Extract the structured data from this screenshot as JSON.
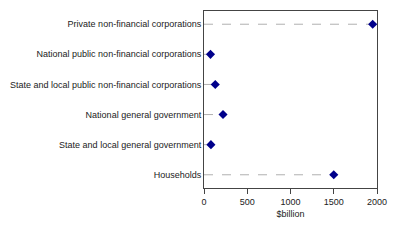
{
  "chart_data": {
    "type": "lollipop",
    "categories": [
      "Private non-financial corporations",
      "National public non-financial corporations",
      "State and local public non-financial corporations",
      "National general government",
      "State and local general government",
      "Households"
    ],
    "values": [
      1950,
      75,
      130,
      220,
      80,
      1500
    ],
    "xlabel": "$billion",
    "xlim": [
      0,
      2000
    ],
    "xticks": [
      0,
      500,
      1000,
      1500,
      2000
    ],
    "color": "#00008B",
    "marker": "diamond",
    "line_style": "dashed",
    "grid": false
  }
}
